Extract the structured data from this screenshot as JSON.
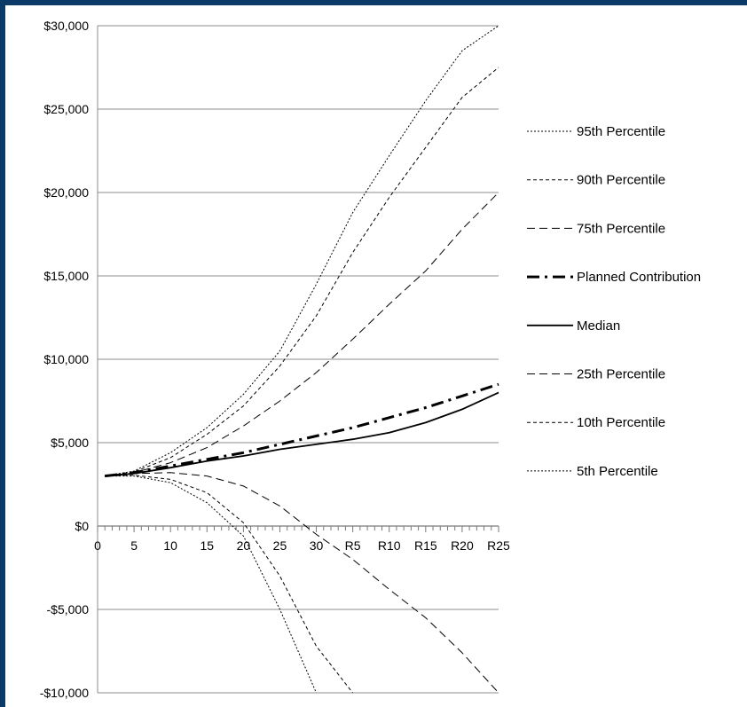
{
  "chart_data": {
    "type": "line",
    "title": "",
    "xlabel": "",
    "ylabel": "",
    "x_tick_labels": [
      "0",
      "5",
      "10",
      "15",
      "20",
      "25",
      "30",
      "R5",
      "R10",
      "R15",
      "R20",
      "R25"
    ],
    "x_range": [
      0,
      55
    ],
    "ylim": [
      -10000,
      30000
    ],
    "y_tick_values": [
      -10000,
      -5000,
      0,
      5000,
      10000,
      15000,
      20000,
      25000,
      30000
    ],
    "y_tick_labels": [
      "-$10,000",
      "-$5,000",
      "$0",
      "$5,000",
      "$10,000",
      "$15,000",
      "$20,000",
      "$25,000",
      "$30,000"
    ],
    "grid": "horizontal",
    "legend_position": "right",
    "x": [
      1,
      5,
      10,
      15,
      20,
      25,
      30,
      35,
      40,
      45,
      50,
      55
    ],
    "series": [
      {
        "name": "95th Percentile",
        "style": "dotted-fine",
        "values": [
          3000,
          3300,
          4400,
          5900,
          7900,
          10500,
          14500,
          18800,
          22200,
          25500,
          28500,
          30000
        ]
      },
      {
        "name": "90th Percentile",
        "style": "dashed-short",
        "values": [
          3000,
          3250,
          4100,
          5500,
          7200,
          9600,
          12600,
          16400,
          19700,
          22700,
          25700,
          27500
        ]
      },
      {
        "name": "75th Percentile",
        "style": "dashed-long",
        "values": [
          3000,
          3200,
          3800,
          4700,
          6000,
          7500,
          9200,
          11200,
          13300,
          15300,
          17800,
          20000
        ]
      },
      {
        "name": "Planned Contribution",
        "style": "dash-dot-bold",
        "values": [
          3000,
          3200,
          3600,
          4000,
          4400,
          4900,
          5400,
          5900,
          6500,
          7100,
          7800,
          8500
        ]
      },
      {
        "name": "Median",
        "style": "solid",
        "values": [
          3000,
          3150,
          3500,
          3900,
          4200,
          4600,
          4900,
          5200,
          5600,
          6200,
          7000,
          8000
        ]
      },
      {
        "name": "25th Percentile",
        "style": "dashed-long",
        "values": [
          3000,
          3150,
          3200,
          3000,
          2400,
          1200,
          -500,
          -2000,
          -3800,
          -5500,
          -7600,
          -10000
        ]
      },
      {
        "name": "10th Percentile",
        "style": "dashed-short",
        "values": [
          3000,
          3050,
          2800,
          2000,
          200,
          -3000,
          -7200,
          -10000,
          null,
          null,
          null,
          null
        ]
      },
      {
        "name": "5th Percentile",
        "style": "dotted-fine",
        "values": [
          3000,
          3000,
          2600,
          1400,
          -600,
          -5000,
          -10000,
          null,
          null,
          null,
          null,
          null
        ]
      }
    ]
  }
}
